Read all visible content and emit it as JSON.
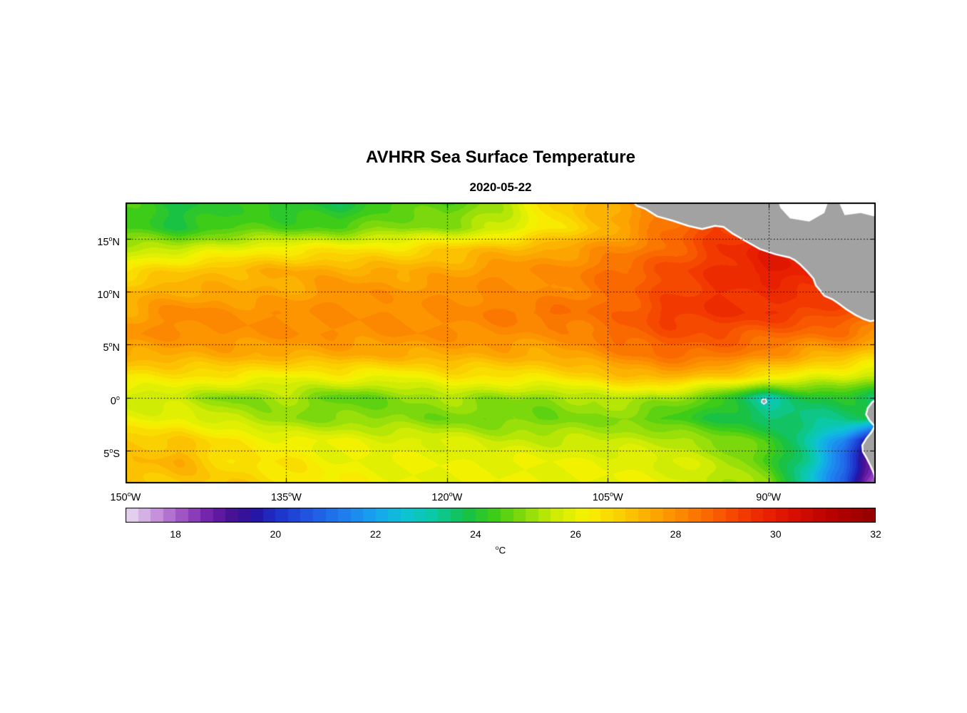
{
  "chart_data": {
    "type": "heatmap",
    "title": "AVHRR Sea Surface Temperature",
    "subtitle": "2020-05-22",
    "map": {
      "lon_range": [
        -150,
        -80
      ],
      "lat_range": [
        -8.1,
        18.4
      ],
      "grid_lons": [
        -150,
        -145,
        -140,
        -135,
        -130,
        -125,
        -120,
        -115,
        -110,
        -105,
        -100,
        -95,
        -90,
        -86,
        -83,
        -81,
        -80
      ],
      "grid_lats": [
        18.4,
        16,
        14,
        12,
        10,
        8,
        6,
        4,
        2,
        0,
        -2,
        -4,
        -6,
        -8.1
      ],
      "sst_values": [
        [
          24.5,
          23.8,
          24.3,
          24.0,
          23.8,
          24.5,
          24.5,
          25.3,
          26.8,
          27.5,
          28.5,
          29.0,
          29.0,
          29.0,
          29.0,
          28.5,
          28.5
        ],
        [
          24.5,
          24.0,
          24.5,
          24.5,
          24.5,
          25.0,
          25.0,
          25.5,
          26.5,
          27.3,
          28.3,
          29.3,
          29.5,
          29.5,
          29.5,
          29.0,
          29.0
        ],
        [
          25.5,
          25.5,
          26.0,
          26.3,
          26.5,
          26.5,
          27.0,
          27.3,
          27.5,
          28.0,
          28.5,
          29.3,
          30.0,
          29.8,
          29.5,
          29.5,
          29.5
        ],
        [
          26.5,
          27.0,
          27.3,
          27.5,
          27.5,
          27.5,
          27.5,
          28.0,
          28.0,
          28.5,
          29.0,
          29.5,
          30.0,
          30.0,
          29.8,
          29.5,
          29.5
        ],
        [
          27.3,
          27.5,
          27.5,
          27.5,
          28.0,
          27.8,
          28.0,
          28.0,
          28.0,
          28.5,
          29.0,
          29.5,
          29.5,
          29.5,
          29.3,
          29.0,
          28.5
        ],
        [
          27.5,
          28.2,
          28.0,
          28.0,
          28.0,
          28.0,
          28.0,
          28.3,
          28.5,
          28.5,
          29.3,
          29.5,
          29.5,
          29.3,
          29.0,
          28.8,
          28.5
        ],
        [
          28.0,
          28.0,
          28.0,
          28.0,
          28.0,
          28.0,
          28.0,
          28.0,
          28.0,
          28.5,
          29.0,
          29.0,
          28.7,
          28.5,
          28.5,
          28.2,
          28.0
        ],
        [
          27.5,
          27.5,
          27.5,
          27.5,
          27.5,
          27.5,
          27.5,
          27.5,
          27.5,
          28.0,
          28.5,
          28.5,
          28.0,
          27.5,
          27.3,
          27.0,
          27.0
        ],
        [
          26.5,
          26.5,
          26.5,
          26.0,
          26.3,
          26.0,
          26.5,
          26.5,
          26.5,
          27.0,
          27.5,
          27.0,
          26.5,
          26.0,
          25.8,
          25.5,
          25.5
        ],
        [
          25.5,
          25.5,
          24.8,
          25.3,
          24.5,
          24.8,
          25.3,
          25.0,
          25.0,
          25.5,
          25.2,
          24.5,
          23.0,
          24.0,
          24.0,
          23.8,
          23.5
        ],
        [
          26.0,
          26.0,
          25.5,
          25.0,
          25.0,
          25.0,
          24.8,
          24.8,
          24.8,
          25.0,
          24.5,
          24.0,
          23.5,
          23.3,
          23.5,
          23.8,
          23.5
        ],
        [
          27.0,
          27.0,
          26.5,
          26.0,
          26.0,
          25.8,
          25.8,
          25.5,
          25.5,
          25.5,
          25.5,
          25.0,
          24.5,
          23.0,
          21.5,
          19.5,
          19.0
        ],
        [
          27.0,
          27.5,
          26.5,
          26.5,
          26.0,
          26.0,
          26.0,
          26.0,
          26.0,
          26.0,
          25.8,
          25.5,
          24.5,
          23.0,
          21.0,
          19.0,
          18.5
        ],
        [
          27.0,
          27.0,
          27.0,
          26.5,
          26.3,
          26.0,
          26.0,
          26.0,
          26.0,
          26.0,
          26.0,
          25.5,
          25.0,
          22.5,
          21.0,
          18.5,
          17.8
        ]
      ],
      "gridline_lats": [
        15,
        10,
        5,
        0,
        -5
      ],
      "gridline_lons": [
        -135,
        -120,
        -105,
        -90
      ]
    },
    "x_axis": {
      "ticks": [
        {
          "v": -150,
          "num": "150",
          "hem": "W"
        },
        {
          "v": -135,
          "num": "135",
          "hem": "W"
        },
        {
          "v": -120,
          "num": "120",
          "hem": "W"
        },
        {
          "v": -105,
          "num": "105",
          "hem": "W"
        },
        {
          "v": -90,
          "num": "90",
          "hem": "W"
        }
      ]
    },
    "y_axis": {
      "ticks": [
        {
          "v": 15,
          "num": "15",
          "hem": "N"
        },
        {
          "v": 10,
          "num": "10",
          "hem": "N"
        },
        {
          "v": 5,
          "num": "5",
          "hem": "N"
        },
        {
          "v": 0,
          "num": "0",
          "hem": ""
        },
        {
          "v": -5,
          "num": "5",
          "hem": "S"
        }
      ]
    },
    "colorbar": {
      "min": 17,
      "max": 32,
      "levels": 60,
      "ticks": [
        18,
        20,
        22,
        24,
        26,
        28,
        30,
        32
      ],
      "unit_sup": "o",
      "unit_text": "C"
    },
    "colormap": [
      [
        17.0,
        "#EADDF2"
      ],
      [
        17.4,
        "#D3AEE3"
      ],
      [
        17.8,
        "#B87BD3"
      ],
      [
        18.2,
        "#9A4CC2"
      ],
      [
        18.7,
        "#6F1DA8"
      ],
      [
        19.2,
        "#401090"
      ],
      [
        19.6,
        "#2614A6"
      ],
      [
        20.0,
        "#1C30C8"
      ],
      [
        20.7,
        "#2058E2"
      ],
      [
        21.4,
        "#1F7FEE"
      ],
      [
        22.0,
        "#16A5EE"
      ],
      [
        22.6,
        "#0DC3D2"
      ],
      [
        23.2,
        "#0BC9A0"
      ],
      [
        23.8,
        "#14C148"
      ],
      [
        24.4,
        "#3FCC16"
      ],
      [
        25.0,
        "#8BDB0A"
      ],
      [
        25.6,
        "#CFEC04"
      ],
      [
        26.2,
        "#F7F300"
      ],
      [
        26.8,
        "#FBD400"
      ],
      [
        27.4,
        "#FCB100"
      ],
      [
        28.0,
        "#FC8E00"
      ],
      [
        28.6,
        "#FA6A00"
      ],
      [
        29.2,
        "#F54400"
      ],
      [
        29.8,
        "#EA2100"
      ],
      [
        30.4,
        "#D60E00"
      ],
      [
        31.0,
        "#BC0300"
      ],
      [
        31.5,
        "#A80000"
      ],
      [
        32.0,
        "#930000"
      ]
    ],
    "land": {
      "fill": "#A2A2A2",
      "coast": "#FFFFFF",
      "no_data_color": "#FFFFFF",
      "polygons": {
        "central_america": [
          [
            -102.9,
            18.8
          ],
          [
            -102.3,
            18.1
          ],
          [
            -101.5,
            17.8
          ],
          [
            -100.4,
            17.1
          ],
          [
            -99.0,
            16.7
          ],
          [
            -97.5,
            16.2
          ],
          [
            -96.2,
            15.9
          ],
          [
            -95.0,
            16.2
          ],
          [
            -94.2,
            16.1
          ],
          [
            -93.4,
            15.5
          ],
          [
            -92.2,
            14.8
          ],
          [
            -90.8,
            14.0
          ],
          [
            -89.3,
            13.5
          ],
          [
            -88.0,
            13.2
          ],
          [
            -87.6,
            13.0
          ],
          [
            -87.1,
            12.6
          ],
          [
            -86.4,
            11.9
          ],
          [
            -85.8,
            11.2
          ],
          [
            -85.6,
            10.6
          ],
          [
            -85.1,
            10.0
          ],
          [
            -84.8,
            9.6
          ],
          [
            -84.1,
            9.3
          ],
          [
            -83.5,
            8.9
          ],
          [
            -82.7,
            8.3
          ],
          [
            -81.9,
            7.8
          ],
          [
            -81.1,
            7.4
          ],
          [
            -80.5,
            7.2
          ],
          [
            -79.5,
            7.4
          ],
          [
            -79.5,
            18.8
          ]
        ],
        "south_america": [
          [
            -79.5,
            -0.05
          ],
          [
            -80.3,
            -0.4
          ],
          [
            -80.75,
            -1.0
          ],
          [
            -80.9,
            -1.6
          ],
          [
            -80.55,
            -2.2
          ],
          [
            -80.1,
            -2.7
          ],
          [
            -80.35,
            -3.2
          ],
          [
            -80.9,
            -3.9
          ],
          [
            -81.25,
            -4.5
          ],
          [
            -81.2,
            -5.1
          ],
          [
            -80.85,
            -5.7
          ],
          [
            -80.5,
            -6.4
          ],
          [
            -80.15,
            -7.2
          ],
          [
            -80.0,
            -7.9
          ],
          [
            -79.9,
            -8.5
          ],
          [
            -79.5,
            -8.5
          ]
        ],
        "galapagos": [
          [
            -90.6,
            -0.18
          ],
          [
            -90.28,
            -0.12
          ],
          [
            -90.18,
            -0.42
          ],
          [
            -90.42,
            -0.62
          ],
          [
            -90.65,
            -0.45
          ]
        ]
      },
      "no_data_patches": [
        [
          [
            -89.2,
            18.8
          ],
          [
            -88.9,
            17.9
          ],
          [
            -88.0,
            16.9
          ],
          [
            -86.2,
            16.6
          ],
          [
            -84.8,
            17.4
          ],
          [
            -84.3,
            18.8
          ]
        ],
        [
          [
            -83.6,
            18.8
          ],
          [
            -82.9,
            17.2
          ],
          [
            -81.4,
            17.4
          ],
          [
            -80.2,
            17.1
          ],
          [
            -79.5,
            17.3
          ],
          [
            -79.5,
            18.8
          ]
        ]
      ]
    }
  }
}
